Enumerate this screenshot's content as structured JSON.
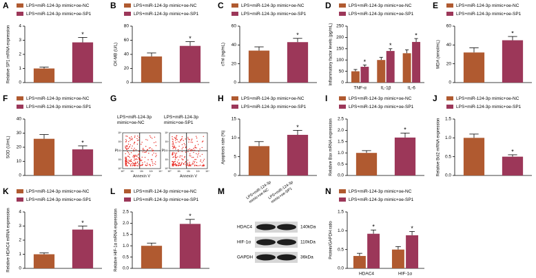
{
  "chart_data": [
    {
      "type": "bar",
      "panel": "A",
      "ylabel": "Relative SP1 mRNA expression",
      "ylim": [
        0,
        4
      ],
      "yticks": [
        0,
        1,
        2,
        3,
        4
      ],
      "annotations": [
        "*"
      ],
      "series": [
        {
          "name": "LPS+miR-124-3p mimic+oe-NC",
          "color": "#b05a30",
          "values": [
            1.0
          ],
          "errors": [
            0.1
          ]
        },
        {
          "name": "LPS+miR-124-3p mimic+oe-SP1",
          "color": "#9c3759",
          "values": [
            2.85
          ],
          "errors": [
            0.35
          ]
        }
      ]
    },
    {
      "type": "bar",
      "panel": "B",
      "ylabel": "CK-MB (U/L)",
      "ylim": [
        0,
        80
      ],
      "yticks": [
        0,
        20,
        40,
        60,
        80
      ],
      "annotations": [
        "*"
      ],
      "series": [
        {
          "name": "LPS+miR-124-3p mimic+oe-NC",
          "color": "#b05a30",
          "values": [
            37
          ],
          "errors": [
            5
          ]
        },
        {
          "name": "LPS+miR-124-3p mimic+oe-SP1",
          "color": "#9c3759",
          "values": [
            52
          ],
          "errors": [
            6
          ]
        }
      ]
    },
    {
      "type": "bar",
      "panel": "C",
      "ylabel": "cTnI (ng/mL)",
      "ylim": [
        0,
        60
      ],
      "yticks": [
        0,
        20,
        40,
        60
      ],
      "annotations": [
        "*"
      ],
      "series": [
        {
          "name": "LPS+miR-124-3p mimic+oe-NC",
          "color": "#b05a30",
          "values": [
            34
          ],
          "errors": [
            4
          ]
        },
        {
          "name": "LPS+miR-124-3p mimic+oe-SP1",
          "color": "#9c3759",
          "values": [
            43
          ],
          "errors": [
            4
          ]
        }
      ]
    },
    {
      "type": "bar",
      "panel": "D",
      "ylabel": "Inflammatory factor levels (pg/mL)",
      "ylim": [
        0,
        250
      ],
      "yticks": [
        0,
        50,
        100,
        150,
        200,
        250
      ],
      "categories": [
        "TNF-α",
        "IL-1β",
        "IL-6"
      ],
      "annotations": [
        "*",
        "*",
        "*"
      ],
      "series": [
        {
          "name": "LPS+miR-124-3p mimic+oe-NC",
          "color": "#b05a30",
          "values": [
            50,
            100,
            130
          ],
          "errors": [
            8,
            12,
            15
          ]
        },
        {
          "name": "LPS+miR-124-3p mimic+oe-SP1",
          "color": "#9c3759",
          "values": [
            70,
            140,
            180
          ],
          "errors": [
            8,
            10,
            15
          ]
        }
      ]
    },
    {
      "type": "bar",
      "panel": "E",
      "ylabel": "MDA (nmol/mL)",
      "ylim": [
        0,
        60
      ],
      "yticks": [
        0,
        20,
        40,
        60
      ],
      "annotations": [
        "*"
      ],
      "series": [
        {
          "name": "LPS+miR-124-3p mimic+oe-NC",
          "color": "#b05a30",
          "values": [
            32
          ],
          "errors": [
            5
          ]
        },
        {
          "name": "LPS+miR-124-3p mimic+oe-SP1",
          "color": "#9c3759",
          "values": [
            45
          ],
          "errors": [
            4
          ]
        }
      ]
    },
    {
      "type": "bar",
      "panel": "F",
      "ylabel": "SOD (U/mL)",
      "ylim": [
        0,
        40
      ],
      "yticks": [
        0,
        10,
        20,
        30,
        40
      ],
      "annotations": [
        "*"
      ],
      "series": [
        {
          "name": "LPS+miR-124-3p mimic+oe-NC",
          "color": "#b05a30",
          "values": [
            26
          ],
          "errors": [
            3
          ]
        },
        {
          "name": "LPS+miR-124-3p mimic+oe-SP1",
          "color": "#9c3759",
          "values": [
            18.5
          ],
          "errors": [
            2.5
          ]
        }
      ]
    },
    {
      "type": "bar",
      "panel": "H",
      "ylabel": "Apoptosis rate (%)",
      "ylim": [
        0,
        15
      ],
      "yticks": [
        0,
        5,
        10,
        15
      ],
      "annotations": [
        "*"
      ],
      "series": [
        {
          "name": "LPS+miR-124-3p mimic+oe-NC",
          "color": "#b05a30",
          "values": [
            7.8
          ],
          "errors": [
            1.2
          ]
        },
        {
          "name": "LPS+miR-124-3p mimic+oe-SP1",
          "color": "#9c3759",
          "values": [
            10.8
          ],
          "errors": [
            1.2
          ]
        }
      ]
    },
    {
      "type": "bar",
      "panel": "I",
      "ylabel": "Relative Bax mRNA expression",
      "ylim": [
        0,
        2.5
      ],
      "yticks": [
        {
          "value": 0,
          "label": "0.0"
        },
        0.5,
        {
          "value": 1,
          "label": "1.0"
        },
        1.5,
        {
          "value": 2,
          "label": "2.0"
        },
        2.5
      ],
      "annotations": [
        "*"
      ],
      "series": [
        {
          "name": "LPS+miR-124-3p mimic+oe-NC",
          "color": "#b05a30",
          "values": [
            1.0
          ],
          "errors": [
            0.1
          ]
        },
        {
          "name": "LPS+miR-124-3p mimic+oe-SP1",
          "color": "#9c3759",
          "values": [
            1.68
          ],
          "errors": [
            0.2
          ]
        }
      ]
    },
    {
      "type": "bar",
      "panel": "J",
      "ylabel": "Relative Bcl2 mRNA expression",
      "ylim": [
        0,
        1.5
      ],
      "yticks": [
        {
          "value": 0,
          "label": "0.0"
        },
        0.5,
        {
          "value": 1,
          "label": "1.0"
        },
        1.5
      ],
      "annotations": [
        "*"
      ],
      "series": [
        {
          "name": "LPS+miR-124-3p mimic+oe-NC",
          "color": "#b05a30",
          "values": [
            1.0
          ],
          "errors": [
            0.1
          ]
        },
        {
          "name": "LPS+miR-124-3p mimic+oe-SP1",
          "color": "#9c3759",
          "values": [
            0.5
          ],
          "errors": [
            0.05
          ]
        }
      ]
    },
    {
      "type": "bar",
      "panel": "K",
      "ylabel": "Relative HDAC4 mRNA expression",
      "ylim": [
        0,
        4
      ],
      "yticks": [
        0,
        1,
        2,
        3,
        4
      ],
      "annotations": [
        "*"
      ],
      "series": [
        {
          "name": "LPS+miR-124-3p mimic+oe-NC",
          "color": "#b05a30",
          "values": [
            1.0
          ],
          "errors": [
            0.1
          ]
        },
        {
          "name": "LPS+miR-124-3p mimic+oe-SP1",
          "color": "#9c3759",
          "values": [
            2.75
          ],
          "errors": [
            0.25
          ]
        }
      ]
    },
    {
      "type": "bar",
      "panel": "L",
      "ylabel": "Relative HIF-1α mRNA expression",
      "ylim": [
        0,
        2.5
      ],
      "yticks": [
        {
          "value": 0,
          "label": "0.0"
        },
        0.5,
        {
          "value": 1,
          "label": "1.0"
        },
        1.5,
        {
          "value": 2,
          "label": "2.0"
        },
        2.5
      ],
      "annotations": [
        "*"
      ],
      "series": [
        {
          "name": "LPS+miR-124-3p mimic+oe-NC",
          "color": "#b05a30",
          "values": [
            1.0
          ],
          "errors": [
            0.12
          ]
        },
        {
          "name": "LPS+miR-124-3p mimic+oe-SP1",
          "color": "#9c3759",
          "values": [
            1.97
          ],
          "errors": [
            0.2
          ]
        }
      ]
    },
    {
      "type": "bar",
      "panel": "N",
      "ylabel": "Protein/GAPDH ratio",
      "ylim": [
        0,
        1.5
      ],
      "yticks": [
        {
          "value": 0,
          "label": "0.0"
        },
        0.5,
        {
          "value": 1,
          "label": "1.0"
        },
        1.5
      ],
      "categories": [
        "HDAC4",
        "HIF-1α"
      ],
      "annotations": [
        "*",
        "*"
      ],
      "series": [
        {
          "name": "LPS+miR-124-3p mimic+oe-NC",
          "color": "#b05a30",
          "values": [
            0.33,
            0.5
          ],
          "errors": [
            0.07,
            0.08
          ]
        },
        {
          "name": "LPS+miR-124-3p mimic+oe-SP1",
          "color": "#9c3759",
          "values": [
            0.92,
            0.88
          ],
          "errors": [
            0.1,
            0.1
          ]
        }
      ]
    }
  ],
  "flow_panel": {
    "panel": "G",
    "groups": [
      "LPS+miR-124-3p mimic+oe-NC",
      "LPS+miR-124-3p mimic+oe-SP1"
    ],
    "y_label": "PI",
    "x_label": "Annexin V",
    "ticks": [
      "10⁰",
      "10¹",
      "10²",
      "10³",
      "10⁴"
    ]
  },
  "blot_panel": {
    "panel": "M",
    "groups": [
      "LPS+miR-124-3p mimic+oe-NC",
      "LPS+miR-124-3p mimic+oe-SP1"
    ],
    "rows": [
      {
        "protein": "HDAC4",
        "size": "140kDa"
      },
      {
        "protein": "HIF-1α",
        "size": "110kDa"
      },
      {
        "protein": "GAPDH",
        "size": "36kDa"
      }
    ]
  }
}
